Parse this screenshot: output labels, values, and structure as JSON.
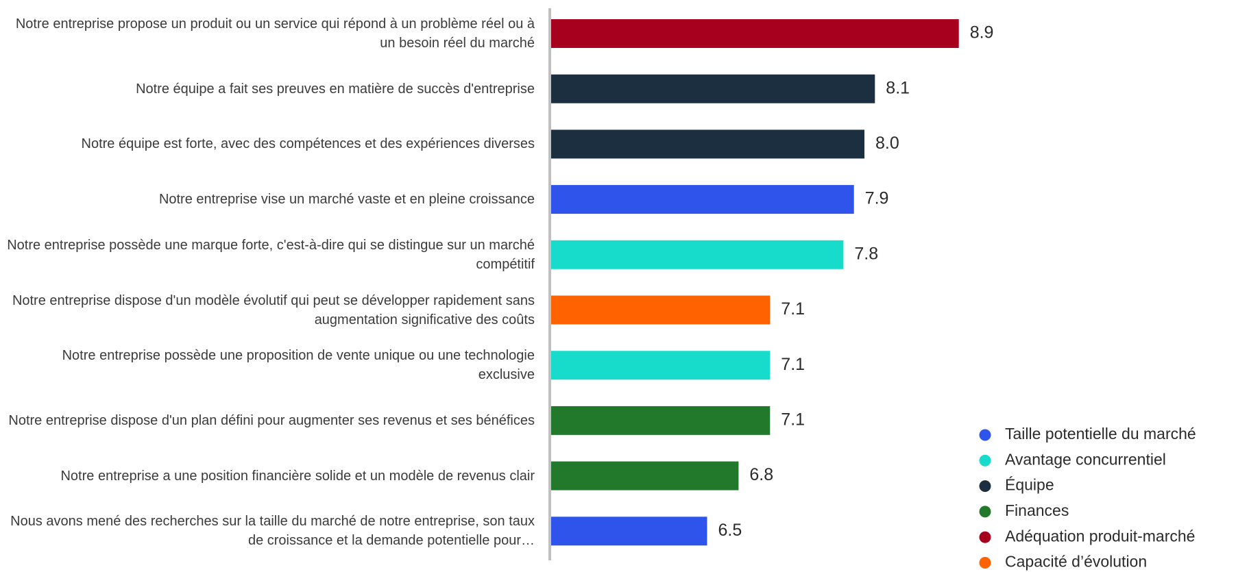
{
  "chart_data": {
    "type": "bar",
    "orientation": "horizontal",
    "categories": [
      "Notre entreprise propose un produit ou un service qui répond à un problème réel ou à un besoin réel du marché",
      "Notre équipe a fait ses preuves en matière de succès d'entreprise",
      "Notre équipe est forte, avec des compétences et des expériences diverses",
      "Notre entreprise vise un marché vaste et en pleine croissance",
      "Notre entreprise possède une marque forte, c'est-à-dire qui se distingue sur un marché compétitif",
      "Notre entreprise dispose d'un modèle évolutif qui peut se développer rapidement sans augmentation significative des coûts",
      "Notre entreprise possède une proposition de vente unique ou une technologie exclusive",
      "Notre entreprise dispose d'un plan défini pour augmenter ses revenus et ses bénéfices",
      "Notre entreprise a une position financière solide et un modèle de revenus clair",
      "Nous avons mené des recherches sur la taille du marché de notre entreprise, son taux de croissance et la demande potentielle pour…"
    ],
    "series": [
      {
        "name": "Taille potentielle du marché",
        "color": "#2f54eb",
        "values": [
          null,
          null,
          null,
          7.9,
          null,
          null,
          null,
          null,
          null,
          6.5
        ],
        "value_labels": [
          null,
          null,
          null,
          "7.9",
          null,
          null,
          null,
          null,
          null,
          "6.5"
        ]
      },
      {
        "name": "Avantage concurrentiel",
        "color": "#17dccb",
        "values": [
          null,
          null,
          null,
          null,
          7.8,
          null,
          7.1,
          null,
          null,
          null
        ],
        "value_labels": [
          null,
          null,
          null,
          null,
          "7.8",
          null,
          "7.1",
          null,
          null,
          null
        ]
      },
      {
        "name": "Équipe",
        "color": "#1b2f40",
        "values": [
          null,
          8.1,
          8.0,
          null,
          null,
          null,
          null,
          null,
          null,
          null
        ],
        "value_labels": [
          null,
          "8.1",
          "8.0",
          null,
          null,
          null,
          null,
          null,
          null,
          null
        ]
      },
      {
        "name": "Finances",
        "color": "#22782b",
        "values": [
          null,
          null,
          null,
          null,
          null,
          null,
          null,
          7.1,
          6.8,
          null
        ],
        "value_labels": [
          null,
          null,
          null,
          null,
          null,
          null,
          null,
          "7.1",
          "6.8",
          null
        ]
      },
      {
        "name": "Adéquation produit-marché",
        "color": "#a6001e",
        "values": [
          8.9,
          null,
          null,
          null,
          null,
          null,
          null,
          null,
          null,
          null
        ],
        "value_labels": [
          "8.9",
          null,
          null,
          null,
          null,
          null,
          null,
          null,
          null,
          null
        ]
      },
      {
        "name": "Capacité d’évolution",
        "color": "#ff6200",
        "values": [
          null,
          null,
          null,
          null,
          null,
          7.1,
          null,
          null,
          null,
          null
        ],
        "value_labels": [
          null,
          null,
          null,
          null,
          null,
          "7.1",
          null,
          null,
          null,
          null
        ]
      }
    ],
    "xlim": [
      5,
      10
    ],
    "legend": "bottom-right"
  }
}
